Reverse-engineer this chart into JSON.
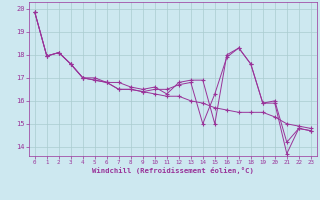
{
  "xlabel": "Windchill (Refroidissement éolien,°C)",
  "bg_color": "#cde8f0",
  "line_color": "#993399",
  "grid_color": "#aaccd0",
  "xlim": [
    -0.5,
    23.5
  ],
  "ylim": [
    13.6,
    20.3
  ],
  "xticks": [
    0,
    1,
    2,
    3,
    4,
    5,
    6,
    7,
    8,
    9,
    10,
    11,
    12,
    13,
    14,
    15,
    16,
    17,
    18,
    19,
    20,
    21,
    22,
    23
  ],
  "yticks": [
    14,
    15,
    16,
    17,
    18,
    19,
    20
  ],
  "series": [
    [
      19.85,
      17.95,
      18.1,
      17.6,
      17.0,
      16.9,
      16.8,
      16.5,
      16.5,
      16.4,
      16.5,
      16.5,
      16.7,
      16.8,
      15.0,
      16.3,
      17.9,
      18.3,
      17.6,
      15.9,
      16.0,
      14.2,
      14.8,
      14.7
    ],
    [
      19.85,
      17.95,
      18.1,
      17.6,
      17.0,
      16.9,
      16.8,
      16.5,
      16.5,
      16.4,
      16.3,
      16.2,
      16.2,
      16.0,
      15.9,
      15.7,
      15.6,
      15.5,
      15.5,
      15.5,
      15.3,
      15.0,
      14.9,
      14.8
    ],
    [
      19.85,
      17.95,
      18.1,
      17.6,
      17.0,
      17.0,
      16.8,
      16.8,
      16.6,
      16.5,
      16.6,
      16.3,
      16.8,
      16.9,
      16.9,
      15.0,
      18.0,
      18.3,
      17.6,
      15.9,
      15.9,
      13.7,
      14.8,
      14.7
    ]
  ],
  "xtick_fontsize": 4.2,
  "ytick_fontsize": 5.0,
  "xlabel_fontsize": 5.2
}
